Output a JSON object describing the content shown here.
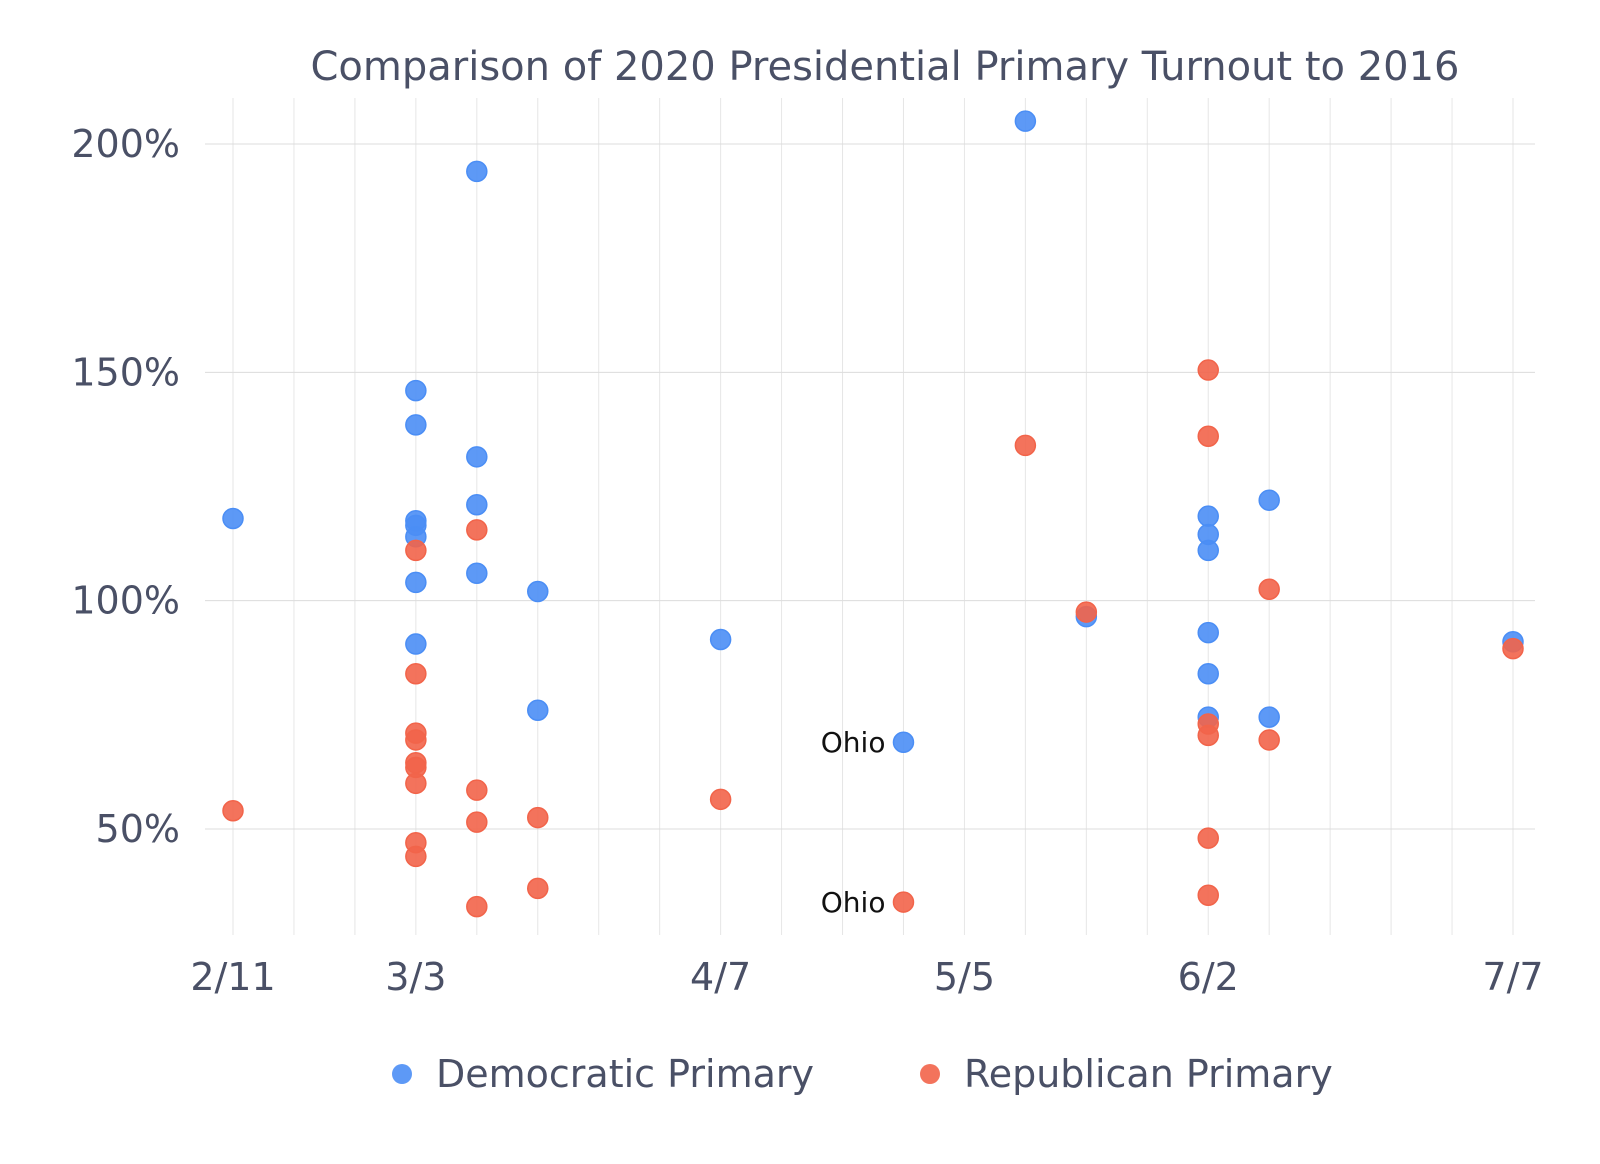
{
  "chart_data": {
    "type": "scatter",
    "title": "Comparison of 2020 Presidential Primary Turnout to 2016",
    "xlabel": "",
    "ylabel": "",
    "x_axis": {
      "type": "date",
      "range": [
        "2/11",
        "7/7"
      ],
      "ticks": [
        "2/11",
        "3/3",
        "4/7",
        "5/5",
        "6/2",
        "7/7"
      ]
    },
    "y_axis": {
      "unit": "%",
      "range": [
        25,
        210
      ],
      "ticks": [
        "50%",
        "100%",
        "150%",
        "200%"
      ]
    },
    "grid": true,
    "legend_position": "bottom",
    "series": [
      {
        "name": "Democratic Primary",
        "color": "#4b8ef5",
        "points": [
          {
            "x": "2/11",
            "y": 118
          },
          {
            "x": "3/3",
            "y": 146
          },
          {
            "x": "3/3",
            "y": 138.5
          },
          {
            "x": "3/3",
            "y": 117.5
          },
          {
            "x": "3/3",
            "y": 116.5
          },
          {
            "x": "3/3",
            "y": 114
          },
          {
            "x": "3/3",
            "y": 104
          },
          {
            "x": "3/3",
            "y": 90.5
          },
          {
            "x": "3/10",
            "y": 194
          },
          {
            "x": "3/10",
            "y": 131.5
          },
          {
            "x": "3/10",
            "y": 121
          },
          {
            "x": "3/10",
            "y": 106
          },
          {
            "x": "3/17",
            "y": 102
          },
          {
            "x": "3/17",
            "y": 76
          },
          {
            "x": "4/7",
            "y": 91.5
          },
          {
            "x": "4/28",
            "y": 69
          },
          {
            "x": "5/12",
            "y": 205
          },
          {
            "x": "5/19",
            "y": 96.5
          },
          {
            "x": "6/2",
            "y": 118.5
          },
          {
            "x": "6/2",
            "y": 114.5
          },
          {
            "x": "6/2",
            "y": 111
          },
          {
            "x": "6/2",
            "y": 93
          },
          {
            "x": "6/2",
            "y": 84
          },
          {
            "x": "6/2",
            "y": 74.5
          },
          {
            "x": "6/9",
            "y": 122
          },
          {
            "x": "6/9",
            "y": 74.5
          },
          {
            "x": "7/7",
            "y": 91
          }
        ]
      },
      {
        "name": "Republican Primary",
        "color": "#f2644a",
        "points": [
          {
            "x": "2/11",
            "y": 54
          },
          {
            "x": "3/3",
            "y": 111
          },
          {
            "x": "3/3",
            "y": 84
          },
          {
            "x": "3/3",
            "y": 71
          },
          {
            "x": "3/3",
            "y": 69.5
          },
          {
            "x": "3/3",
            "y": 64.5
          },
          {
            "x": "3/3",
            "y": 63.5
          },
          {
            "x": "3/3",
            "y": 60
          },
          {
            "x": "3/3",
            "y": 47
          },
          {
            "x": "3/3",
            "y": 44
          },
          {
            "x": "3/10",
            "y": 115.5
          },
          {
            "x": "3/10",
            "y": 58.5
          },
          {
            "x": "3/10",
            "y": 51.5
          },
          {
            "x": "3/10",
            "y": 33
          },
          {
            "x": "3/17",
            "y": 52.5
          },
          {
            "x": "3/17",
            "y": 37
          },
          {
            "x": "4/7",
            "y": 56.5
          },
          {
            "x": "4/28",
            "y": 34
          },
          {
            "x": "5/12",
            "y": 134
          },
          {
            "x": "5/19",
            "y": 97.5
          },
          {
            "x": "6/2",
            "y": 150.5
          },
          {
            "x": "6/2",
            "y": 136
          },
          {
            "x": "6/2",
            "y": 73
          },
          {
            "x": "6/2",
            "y": 70.5
          },
          {
            "x": "6/2",
            "y": 48
          },
          {
            "x": "6/2",
            "y": 35.5
          },
          {
            "x": "6/9",
            "y": 102.5
          },
          {
            "x": "6/9",
            "y": 69.5
          },
          {
            "x": "7/7",
            "y": 89.5
          }
        ]
      }
    ],
    "annotations": [
      {
        "text": "Ohio",
        "x": "4/28",
        "y": 69
      },
      {
        "text": "Ohio",
        "x": "4/28",
        "y": 34
      }
    ]
  }
}
